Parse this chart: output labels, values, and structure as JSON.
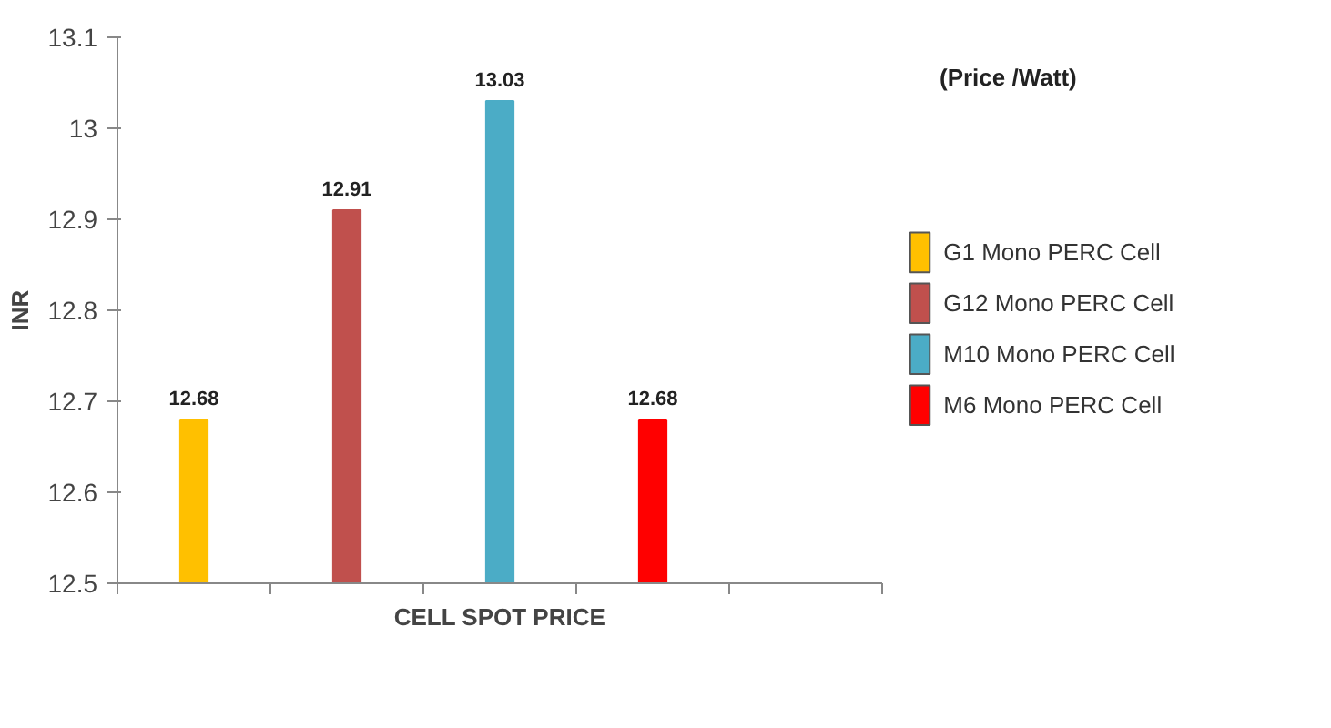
{
  "chart_data": {
    "type": "bar",
    "xlabel": "CELL SPOT PRICE",
    "ylabel": "INR",
    "annotations": [
      "(Price /Watt)"
    ],
    "categories": [
      null,
      null,
      null,
      null,
      null
    ],
    "series": [
      {
        "name": "G1 Mono PERC Cell",
        "color": "#ffc000",
        "values": [
          12.68,
          null,
          null,
          null,
          null
        ]
      },
      {
        "name": "G12 Mono PERC Cell",
        "color": "#c0504d",
        "values": [
          null,
          12.91,
          null,
          null,
          null
        ]
      },
      {
        "name": "M10 Mono PERC Cell",
        "color": "#4bacc6",
        "values": [
          null,
          null,
          13.03,
          null,
          null
        ]
      },
      {
        "name": "M6 Mono PERC Cell",
        "color": "#ff0000",
        "values": [
          null,
          null,
          null,
          12.68,
          null
        ]
      }
    ],
    "ylim": [
      12.5,
      13.1
    ],
    "yticks": [
      12.5,
      12.6,
      12.7,
      12.8,
      12.9,
      13,
      13.1
    ],
    "data_labels": true,
    "grid": false,
    "legend": "right"
  }
}
